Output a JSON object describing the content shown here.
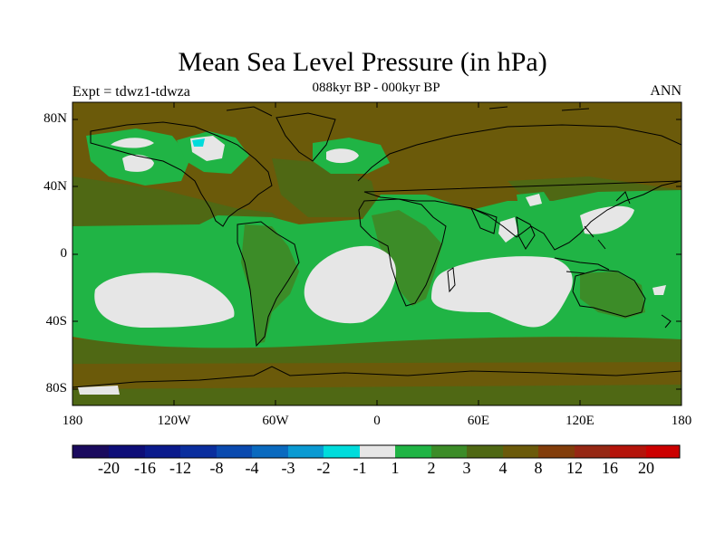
{
  "title": "Mean Sea Level Pressure (in hPa)",
  "subtitle": "088kyr BP - 000kyr BP",
  "left_label": "Expt = tdwz1-tdwza",
  "right_label": "ANN",
  "map": {
    "projection": "cylindrical equidistant",
    "lon_range": [
      -180,
      180
    ],
    "lat_range": [
      -90,
      90
    ],
    "y_ticks": [
      "80N",
      "40N",
      "0",
      "40S",
      "80S"
    ],
    "x_ticks": [
      "180",
      "120W",
      "60W",
      "0",
      "60E",
      "120E",
      "180"
    ],
    "background_class": "4 to 8 hPa (olive-brown)",
    "regions": [
      {
        "name": "tropical band",
        "class": "1 to 2"
      },
      {
        "name": "South Pacific high",
        "class": "-1 to 1"
      },
      {
        "name": "South Atlantic high",
        "class": "-1 to 1"
      },
      {
        "name": "South Indian high",
        "class": "-1 to 1"
      },
      {
        "name": "Northwest Pacific",
        "class": "-1 to 1"
      },
      {
        "name": "North Pacific (Aleutian)",
        "class": "-1 to 1"
      },
      {
        "name": "Northern Canada",
        "class": "-1 to 1, small -2 to -1 patch"
      },
      {
        "name": "North Atlantic",
        "class": "-1 to 1"
      },
      {
        "name": "Southern Ocean belt",
        "class": "2 to 3"
      }
    ]
  },
  "colorbar": {
    "labels": [
      "-20",
      "-16",
      "-12",
      "-8",
      "-4",
      "-3",
      "-2",
      "-1",
      "1",
      "2",
      "3",
      "4",
      "8",
      "12",
      "16",
      "20"
    ],
    "colors": [
      "#1a0a5e",
      "#0d0d78",
      "#0a1a8c",
      "#0a2e9e",
      "#0a4aaf",
      "#0a6abf",
      "#0a9ad2",
      "#00dcdc",
      "#e6e6e6",
      "#20b445",
      "#3c8c28",
      "#4f6814",
      "#6b5a0a",
      "#823d0a",
      "#962814",
      "#b4140a",
      "#cc0000"
    ]
  }
}
